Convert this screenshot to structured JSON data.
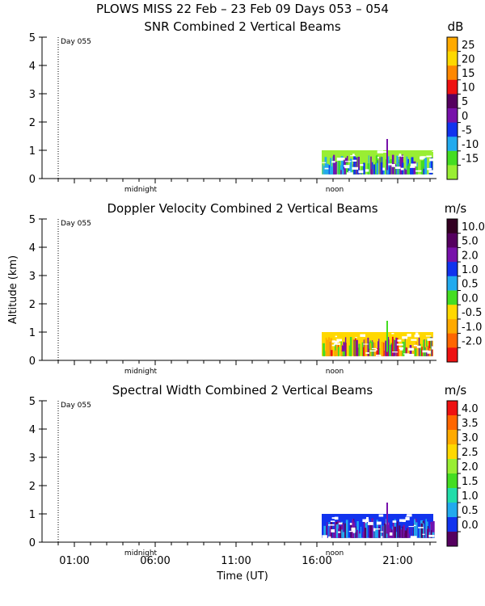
{
  "header": {
    "title": "PLOWS MISS  22 Feb – 23 Feb 09 Days 053 – 054"
  },
  "chart_data": [
    {
      "type": "heatmap",
      "title": "SNR Combined 2 Vertical Beams",
      "ylabel": "",
      "ylim": [
        0,
        5
      ],
      "y_ticks": [
        "0",
        "1",
        "2",
        "3",
        "4",
        "5"
      ],
      "annotations": [
        "Day 055",
        "midnight",
        "noon"
      ],
      "colorbar": {
        "unit": "dB",
        "labels": [
          "25",
          "20",
          "15",
          "10",
          "5",
          "0",
          "-5",
          "-10",
          "-15"
        ],
        "colors": [
          "#ffaa00",
          "#ffd800",
          "#ff8800",
          "#ee1111",
          "#55005f",
          "#7711aa",
          "#1133ee",
          "#22aaee",
          "#44dd22",
          "#99ee33"
        ]
      },
      "echo": {
        "x_start_h": 16.3,
        "x_end_h": 23.2,
        "top_km": 1.0,
        "colors": [
          "#99ee33",
          "#44dd22",
          "#22aaee",
          "#1133ee",
          "#7711aa"
        ]
      }
    },
    {
      "type": "heatmap",
      "title": "Doppler Velocity Combined 2 Vertical Beams",
      "ylabel": "Altitude (km)",
      "ylim": [
        0,
        5
      ],
      "y_ticks": [
        "0",
        "1",
        "2",
        "3",
        "4",
        "5"
      ],
      "annotations": [
        "Day 055",
        "midnight",
        "noon"
      ],
      "colorbar": {
        "unit": "m/s",
        "labels": [
          "10.0",
          "5.0",
          "2.0",
          "1.0",
          "0.5",
          "0.0",
          "-0.5",
          "-1.0",
          "-2.0"
        ],
        "colors": [
          "#330022",
          "#55005f",
          "#7711aa",
          "#1133ee",
          "#22aaee",
          "#44dd22",
          "#ffd800",
          "#ffaa00",
          "#ff6600",
          "#ee1111"
        ]
      },
      "echo": {
        "x_start_h": 16.3,
        "x_end_h": 23.2,
        "top_km": 1.0,
        "colors": [
          "#ffd800",
          "#ffaa00",
          "#ee1111",
          "#7711aa",
          "#44dd22"
        ]
      }
    },
    {
      "type": "heatmap",
      "title": "Spectral Width Combined 2 Vertical Beams",
      "xlabel": "Time (UT)",
      "ylabel": "",
      "ylim": [
        0,
        5
      ],
      "y_ticks": [
        "0",
        "1",
        "2",
        "3",
        "4",
        "5"
      ],
      "x_ticks": [
        "01:00",
        "06:00",
        "11:00",
        "16:00",
        "21:00"
      ],
      "annotations": [
        "Day 055",
        "midnight",
        "noon"
      ],
      "colorbar": {
        "unit": "m/s",
        "labels": [
          "4.0",
          "3.5",
          "3.0",
          "2.5",
          "2.0",
          "1.5",
          "1.0",
          "0.5",
          "0.0"
        ],
        "colors": [
          "#ee1111",
          "#ff6600",
          "#ffaa00",
          "#ffd800",
          "#99ee33",
          "#44dd22",
          "#22ddaa",
          "#22aaee",
          "#1133ee",
          "#55005f"
        ]
      },
      "echo": {
        "x_start_h": 16.3,
        "x_end_h": 23.2,
        "top_km": 1.0,
        "colors": [
          "#1133ee",
          "#22aaee",
          "#55005f",
          "#7711aa"
        ]
      }
    }
  ]
}
